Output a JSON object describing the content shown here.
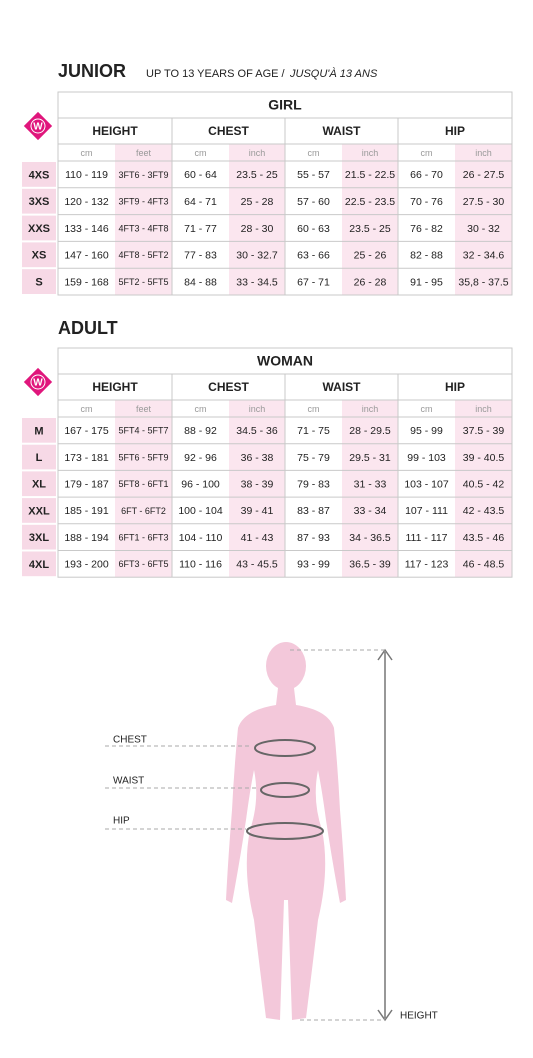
{
  "junior": {
    "title": "JUNIOR",
    "subtitle": "UP TO 13 YEARS OF AGE /",
    "subtitle_fr": "JUSQU'À 13 ANS",
    "badge": "W",
    "group": "GIRL",
    "columns": [
      "HEIGHT",
      "CHEST",
      "WAIST",
      "HIP"
    ],
    "units": [
      "cm",
      "feet",
      "cm",
      "inch",
      "cm",
      "inch",
      "cm",
      "inch"
    ],
    "rows": [
      {
        "size": "4XS",
        "cells": [
          "110 - 119",
          "3FT6 - 3FT9",
          "60 - 64",
          "23.5 - 25",
          "55 - 57",
          "21.5 - 22.5",
          "66 - 70",
          "26 - 27.5"
        ]
      },
      {
        "size": "3XS",
        "cells": [
          "120 - 132",
          "3FT9 - 4FT3",
          "64 - 71",
          "25 - 28",
          "57 - 60",
          "22.5 - 23.5",
          "70 - 76",
          "27.5 - 30"
        ]
      },
      {
        "size": "XXS",
        "cells": [
          "133 - 146",
          "4FT3 - 4FT8",
          "71 - 77",
          "28 - 30",
          "60 - 63",
          "23.5 - 25",
          "76 - 82",
          "30 - 32"
        ]
      },
      {
        "size": "XS",
        "cells": [
          "147 - 160",
          "4FT8 - 5FT2",
          "77 - 83",
          "30 - 32.7",
          "63 - 66",
          "25 - 26",
          "82 - 88",
          "32 - 34.6"
        ]
      },
      {
        "size": "S",
        "cells": [
          "159 - 168",
          "5FT2 - 5FT5",
          "84 - 88",
          "33 - 34.5",
          "67 - 71",
          "26 - 28",
          "91 - 95",
          "35,8 - 37.5"
        ]
      }
    ]
  },
  "adult": {
    "title": "ADULT",
    "badge": "W",
    "group": "WOMAN",
    "columns": [
      "HEIGHT",
      "CHEST",
      "WAIST",
      "HIP"
    ],
    "units": [
      "cm",
      "feet",
      "cm",
      "inch",
      "cm",
      "inch",
      "cm",
      "inch"
    ],
    "rows": [
      {
        "size": "M",
        "cells": [
          "167 - 175",
          "5FT4 - 5FT7",
          "88 - 92",
          "34.5 - 36",
          "71 - 75",
          "28 - 29.5",
          "95 - 99",
          "37.5 - 39"
        ]
      },
      {
        "size": "L",
        "cells": [
          "173 - 181",
          "5FT6 - 5FT9",
          "92 - 96",
          "36 - 38",
          "75 - 79",
          "29.5 - 31",
          "99 - 103",
          "39 - 40.5"
        ]
      },
      {
        "size": "XL",
        "cells": [
          "179 - 187",
          "5FT8 - 6FT1",
          "96 - 100",
          "38 - 39",
          "79 - 83",
          "31 - 33",
          "103 - 107",
          "40.5 - 42"
        ]
      },
      {
        "size": "XXL",
        "cells": [
          "185 - 191",
          "6FT - 6FT2",
          "100 - 104",
          "39 - 41",
          "83 - 87",
          "33 - 34",
          "107 - 111",
          "42 - 43.5"
        ]
      },
      {
        "size": "3XL",
        "cells": [
          "188 - 194",
          "6FT1 - 6FT3",
          "104 - 110",
          "41 - 43",
          "87 - 93",
          "34 - 36.5",
          "111 - 117",
          "43.5 - 46"
        ]
      },
      {
        "size": "4XL",
        "cells": [
          "193 - 200",
          "6FT3 - 6FT5",
          "110 - 116",
          "43 - 45.5",
          "93 - 99",
          "36.5 - 39",
          "117 - 123",
          "46 - 48.5"
        ]
      }
    ]
  },
  "figure": {
    "labels": [
      "CHEST",
      "WAIST",
      "HIP",
      "HEIGHT"
    ]
  }
}
